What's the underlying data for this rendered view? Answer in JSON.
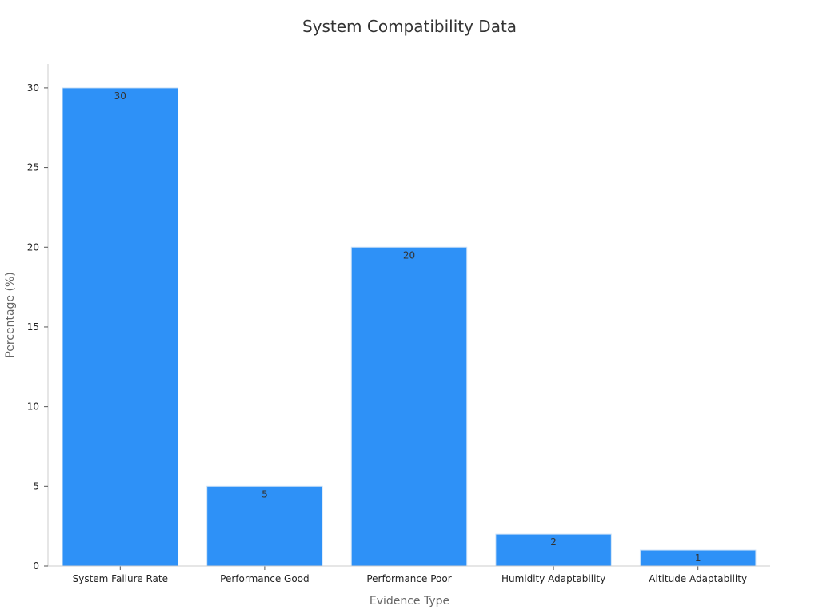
{
  "chart_data": {
    "type": "bar",
    "title": "System Compatibility Data",
    "xlabel": "Evidence Type",
    "ylabel": "Percentage (%)",
    "categories": [
      "System Failure Rate",
      "Performance Good",
      "Performance Poor",
      "Humidity Adaptability",
      "Altitude Adaptability"
    ],
    "values": [
      30,
      5,
      20,
      2,
      1
    ],
    "data_labels": [
      "30",
      "5",
      "20",
      "2",
      "1"
    ],
    "ylim": [
      0,
      31.5
    ],
    "yticks": [
      0,
      5,
      10,
      15,
      20,
      25,
      30
    ],
    "grid": false,
    "legend": "none",
    "bar_color": "#2e91f7"
  }
}
